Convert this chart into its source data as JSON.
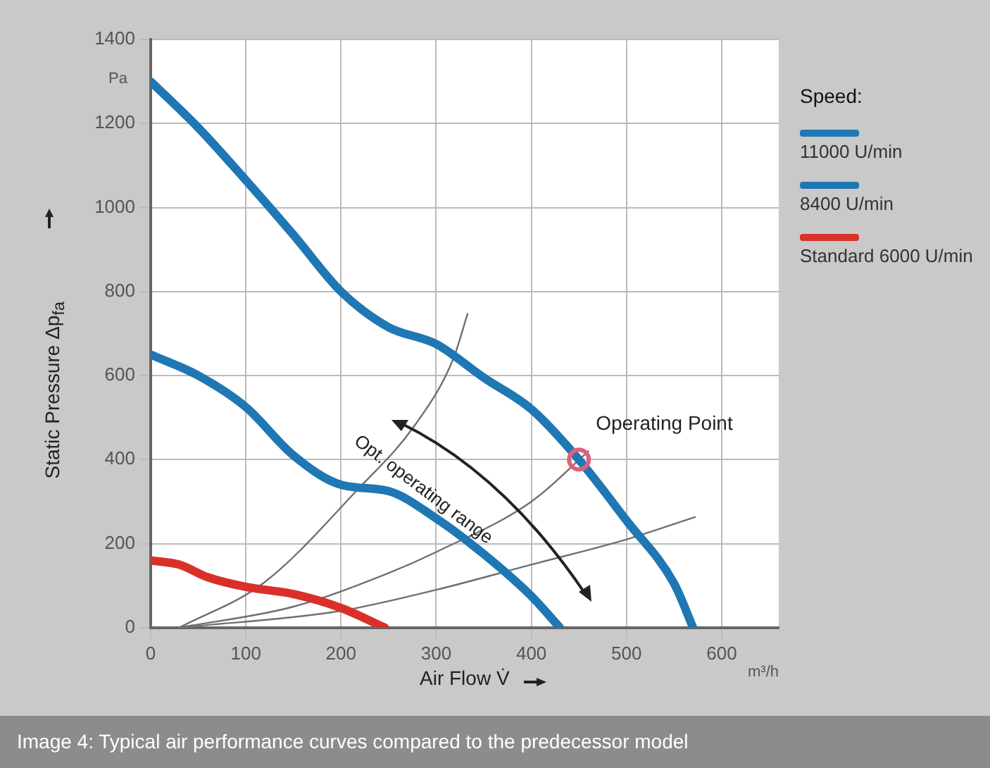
{
  "chart_data": {
    "type": "line",
    "xlabel": "Air Flow V̇",
    "ylabel": "Static Pressure  Δp$_{fa}$",
    "legend_title": "Speed:",
    "xlim": [
      0,
      660
    ],
    "xticks": [
      0,
      100,
      200,
      300,
      400,
      500,
      600
    ],
    "ylim": [
      0,
      1400
    ],
    "yticks": [
      0,
      200,
      400,
      600,
      800,
      1000,
      1200,
      1400
    ],
    "grid": true,
    "legend": "right",
    "line_style": "solid",
    "series": [
      {
        "name": "11000 U/min",
        "color": "#1f77b4",
        "x": [
          0,
          50,
          100,
          150,
          200,
          250,
          300,
          350,
          400,
          450,
          500,
          550,
          570
        ],
        "values": [
          1300,
          1190,
          1065,
          935,
          800,
          715,
          675,
          595,
          520,
          400,
          255,
          105,
          0
        ]
      },
      {
        "name": "8400 U/min",
        "color": "#1f77b4",
        "x": [
          0,
          50,
          100,
          150,
          200,
          250,
          300,
          350,
          400,
          430
        ],
        "values": [
          650,
          600,
          525,
          410,
          340,
          325,
          260,
          175,
          75,
          0
        ]
      },
      {
        "name": "Standard 6000 U/min",
        "color": "#d9302a",
        "x": [
          0,
          30,
          60,
          100,
          150,
          200,
          246
        ],
        "values": [
          160,
          150,
          120,
          97,
          80,
          47,
          0
        ]
      },
      {
        "color": "#707070",
        "x": [
          30,
          119,
          218,
          278,
          318,
          333
        ],
        "values": [
          0,
          107,
          330,
          483,
          640,
          747
        ]
      },
      {
        "color": "#707070",
        "x": [
          30,
          150,
          250,
          300,
          400,
          460
        ],
        "values": [
          0,
          50,
          130,
          180,
          300,
          420
        ]
      },
      {
        "color": "#707070",
        "x": [
          30,
          200,
          300,
          400,
          500,
          572
        ],
        "values": [
          0,
          40,
          90,
          150,
          210,
          263
        ]
      },
      {
        "type": "scatter",
        "color": "#e0607a",
        "x": [
          450
        ],
        "values": [
          400
        ]
      }
    ],
    "annotations": [
      "Pa",
      "m³/h",
      "Opt. operating range",
      {
        "text": "Operating Point",
        "x": 450,
        "y": 400
      },
      "Image 4: Typical air performance curves compared to the predecessor model"
    ]
  }
}
